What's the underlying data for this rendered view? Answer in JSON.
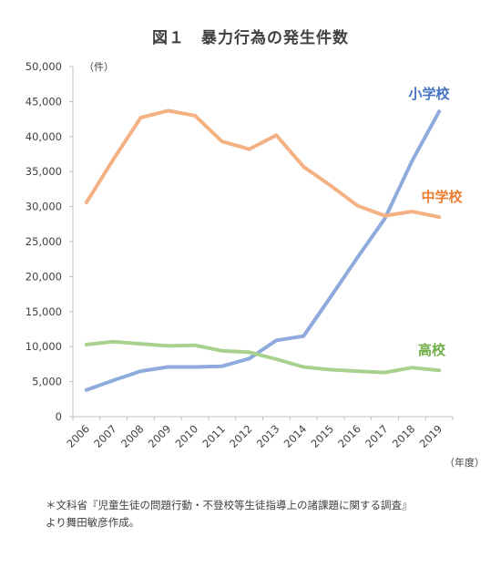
{
  "chart_data": {
    "type": "line",
    "title": "図１　暴力行為の発生件数",
    "ylabel": "（件）",
    "xlabel": "（年度）",
    "ylim": [
      0,
      50000
    ],
    "yticks": [
      0,
      5000,
      10000,
      15000,
      20000,
      25000,
      30000,
      35000,
      40000,
      45000,
      50000
    ],
    "ytick_labels": [
      "0",
      "5,000",
      "10,000",
      "15,000",
      "20,000",
      "25,000",
      "30,000",
      "35,000",
      "40,000",
      "45,000",
      "50,000"
    ],
    "categories": [
      "2006",
      "2007",
      "2008",
      "2009",
      "2010",
      "2011",
      "2012",
      "2013",
      "2014",
      "2015",
      "2016",
      "2017",
      "2018",
      "2019"
    ],
    "series": [
      {
        "name": "小学校",
        "color": "#8FAADC",
        "values": [
          3800,
          5200,
          6500,
          7100,
          7100,
          7200,
          8300,
          10900,
          11500,
          17100,
          22800,
          28300,
          36500,
          43600
        ]
      },
      {
        "name": "中学校",
        "color": "#F4B183",
        "values": [
          30600,
          36800,
          42700,
          43700,
          43000,
          39300,
          38200,
          40200,
          35700,
          33000,
          30100,
          28700,
          29300,
          28500
        ]
      },
      {
        "name": "高校",
        "color": "#A9D18E",
        "values": [
          10300,
          10700,
          10400,
          10100,
          10200,
          9400,
          9200,
          8200,
          7100,
          6700,
          6500,
          6300,
          7000,
          6600
        ]
      }
    ],
    "grid": false,
    "legend": "inline labels at right"
  },
  "footnote": {
    "line1": "＊文科省『児童生徒の問題行動・不登校等生徒指導上の諸課題に関する調査』",
    "line2": "より舞田敏彦作成。"
  }
}
